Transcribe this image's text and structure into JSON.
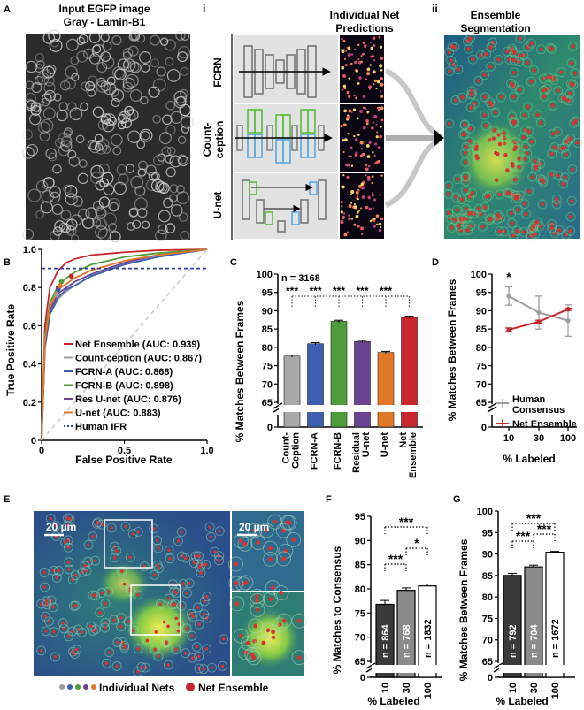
{
  "colors": {
    "net_ensemble": "#c7262d",
    "count_ception": "#9d9d9d",
    "fcrn_a": "#3d5fad",
    "fcrn_b": "#4e9d3a",
    "res_unet": "#6b4291",
    "unet": "#e27826",
    "human": "#2e3f9c",
    "human_consensus": "#9d9d9d",
    "bar_dark": "#3a3a3a",
    "bar_mid": "#8a8a8a"
  },
  "panel_a": {
    "letter": "A",
    "title_line1": "Input EGFP image",
    "title_line2": "Gray - Lamin-B1"
  },
  "panel_i": {
    "numeral": "i",
    "title_line1": "Individual Net",
    "title_line2": "Predictions",
    "rows": [
      "FCRN",
      "Count-",
      "ception",
      "U-net"
    ]
  },
  "panel_ii": {
    "numeral": "ii",
    "title_line1": "Ensemble",
    "title_line2": "Segmentation"
  },
  "panel_b": {
    "letter": "B",
    "ylabel": "True Positive Rate",
    "xlabel": "False Positive Rate",
    "xticks": [
      "0",
      "0.5",
      "1.0"
    ],
    "yticks": [
      "0",
      "0.2",
      "0.4",
      "0.6",
      "0.8",
      "1.0"
    ],
    "legend": [
      "Net Ensemble (AUC: 0.939)",
      "Count-ception (AUC: 0.867)",
      "FCRN-A (AUC: 0.868)",
      "FCRN-B (AUC: 0.898)",
      "Res U-net (AUC: 0.876)",
      "U-net (AUC: 0.883)",
      "Human IFR"
    ]
  },
  "panel_c": {
    "letter": "C",
    "note": "n = 3168",
    "ylabel": "% Matches Between Frames",
    "yticks": [
      "65",
      "70",
      "75",
      "80",
      "85",
      "90",
      "95",
      "100"
    ],
    "ytick_zero": "0",
    "sig": [
      "***",
      "***",
      "***",
      "***",
      "***"
    ],
    "cat_lines": [
      [
        "Count-",
        "Ception"
      ],
      [
        "FCRN-A"
      ],
      [
        "FCRN-B"
      ],
      [
        "Residual",
        "U-net"
      ],
      [
        "U-net"
      ],
      [
        "Net",
        "Ensemble"
      ]
    ]
  },
  "panel_d": {
    "letter": "D",
    "star": "*",
    "ylabel": "% Matches Between Frames",
    "xlabel": "% Labeled",
    "xticks": [
      "10",
      "30",
      "100"
    ],
    "yticks": [
      "65",
      "70",
      "75",
      "80",
      "85",
      "90",
      "95",
      "100"
    ],
    "ytick_zero": "0",
    "legend_human_line1": "Human",
    "legend_human_line2": "Consensus",
    "legend_ensemble": "Net Ensemble"
  },
  "panel_e": {
    "letter": "E",
    "scale_main": "20 µm",
    "scale_inset": "20 µm",
    "legend_individual": "Individual Nets",
    "legend_ensemble": "Net Ensemble"
  },
  "panel_f": {
    "letter": "F",
    "ylabel": "% Matches to Consensus",
    "xlabel": "% Labeled",
    "xticks": [
      "10",
      "30",
      "100"
    ],
    "yticks": [
      "65",
      "70",
      "75",
      "80",
      "85",
      "90",
      "95"
    ],
    "ytick_zero": "0",
    "n_labels": [
      "n = 864",
      "n = 768",
      "n = 1832"
    ],
    "sig": [
      "***",
      "***",
      "*"
    ]
  },
  "panel_g": {
    "letter": "G",
    "ylabel": "% Matches Between Frames",
    "xlabel": "% Labeled",
    "xticks": [
      "10",
      "30",
      "100"
    ],
    "yticks": [
      "65",
      "70",
      "75",
      "80",
      "85",
      "90",
      "95",
      "100"
    ],
    "ytick_zero": "0",
    "n_labels": [
      "n = 792",
      "n = 704",
      "n = 1672"
    ],
    "sig": [
      "***",
      "***",
      "***"
    ]
  },
  "chart_data": [
    {
      "panel": "B",
      "type": "line",
      "title": "",
      "xlabel": "False Positive Rate",
      "ylabel": "True Positive Rate",
      "xlim": [
        0,
        1
      ],
      "ylim": [
        0,
        1
      ],
      "series": [
        {
          "name": "Net Ensemble (AUC: 0.939)",
          "color": "#c7262d",
          "x": [
            0,
            0.02,
            0.05,
            0.1,
            0.15,
            0.2,
            0.3,
            0.5,
            0.7,
            1.0
          ],
          "y": [
            0,
            0.6,
            0.8,
            0.89,
            0.93,
            0.95,
            0.97,
            0.985,
            0.995,
            1.0
          ]
        },
        {
          "name": "Count-ception (AUC: 0.867)",
          "color": "#9d9d9d",
          "x": [
            0,
            0.02,
            0.05,
            0.1,
            0.15,
            0.2,
            0.3,
            0.5,
            0.7,
            1.0
          ],
          "y": [
            0,
            0.5,
            0.66,
            0.74,
            0.78,
            0.81,
            0.86,
            0.92,
            0.96,
            1.0
          ]
        },
        {
          "name": "FCRN-A (AUC: 0.868)",
          "color": "#3d5fad",
          "x": [
            0,
            0.02,
            0.05,
            0.1,
            0.15,
            0.2,
            0.3,
            0.5,
            0.7,
            1.0
          ],
          "y": [
            0,
            0.48,
            0.66,
            0.75,
            0.79,
            0.81,
            0.86,
            0.92,
            0.96,
            1.0
          ]
        },
        {
          "name": "FCRN-B (AUC: 0.898)",
          "color": "#4e9d3a",
          "x": [
            0,
            0.02,
            0.05,
            0.1,
            0.15,
            0.2,
            0.3,
            0.5,
            0.7,
            1.0
          ],
          "y": [
            0,
            0.55,
            0.72,
            0.81,
            0.85,
            0.88,
            0.92,
            0.96,
            0.98,
            1.0
          ]
        },
        {
          "name": "Res U-net (AUC: 0.876)",
          "color": "#6b4291",
          "x": [
            0,
            0.02,
            0.05,
            0.1,
            0.15,
            0.2,
            0.3,
            0.5,
            0.7,
            1.0
          ],
          "y": [
            0,
            0.5,
            0.68,
            0.77,
            0.8,
            0.83,
            0.87,
            0.93,
            0.97,
            1.0
          ]
        },
        {
          "name": "U-net (AUC: 0.883)",
          "color": "#e27826",
          "x": [
            0,
            0.02,
            0.05,
            0.1,
            0.15,
            0.2,
            0.3,
            0.5,
            0.7,
            1.0
          ],
          "y": [
            0,
            0.52,
            0.7,
            0.79,
            0.82,
            0.85,
            0.89,
            0.94,
            0.97,
            1.0
          ]
        },
        {
          "name": "Human IFR",
          "color": "#2e3f9c",
          "dashed": true,
          "x": [
            0,
            1
          ],
          "y": [
            0.9,
            0.9
          ]
        },
        {
          "name": "chance",
          "color": "#cccccc",
          "dashed": true,
          "x": [
            0,
            1
          ],
          "y": [
            0,
            1
          ]
        }
      ],
      "points": [
        {
          "series": "Net Ensemble",
          "x": 0.18,
          "y": 0.86
        },
        {
          "series": "Count-ception",
          "x": 0.09,
          "y": 0.76
        },
        {
          "series": "FCRN-A",
          "x": 0.1,
          "y": 0.79
        },
        {
          "series": "FCRN-B",
          "x": 0.12,
          "y": 0.83
        },
        {
          "series": "Res U-net",
          "x": 0.1,
          "y": 0.8
        },
        {
          "series": "U-net",
          "x": 0.11,
          "y": 0.81
        }
      ]
    },
    {
      "panel": "C",
      "type": "bar",
      "title": "",
      "xlabel": "",
      "ylabel": "% Matches Between Frames",
      "ylim": [
        65,
        100
      ],
      "axis_break": true,
      "categories": [
        "Count-Ception",
        "FCRN-A",
        "FCRN-B",
        "Residual U-net",
        "U-net",
        "Net Ensemble"
      ],
      "values": [
        77.6,
        81.0,
        87.1,
        81.6,
        78.6,
        88.2
      ],
      "errors": [
        0.3,
        0.3,
        0.3,
        0.3,
        0.3,
        0.3
      ],
      "colors": [
        "#a8a8a8",
        "#3d5fad",
        "#4e9d3a",
        "#6b4291",
        "#e27826",
        "#c7262d"
      ],
      "annotation": "n = 3168"
    },
    {
      "panel": "D",
      "type": "line",
      "title": "",
      "xlabel": "% Labeled",
      "ylabel": "% Matches Between Frames",
      "ylim": [
        65,
        100
      ],
      "axis_break": true,
      "categories": [
        "10",
        "30",
        "100"
      ],
      "series": [
        {
          "name": "Human Consensus",
          "color": "#9d9d9d",
          "values": [
            94.0,
            89.5,
            87.3
          ],
          "errors": [
            2.5,
            4.5,
            4.3
          ]
        },
        {
          "name": "Net Ensemble",
          "color": "#c7262d",
          "values": [
            84.8,
            87.0,
            90.4
          ],
          "errors": [
            0.5,
            0.4,
            0.3
          ]
        }
      ]
    },
    {
      "panel": "F",
      "type": "bar",
      "title": "",
      "xlabel": "% Labeled",
      "ylabel": "% Matches to Consensus",
      "ylim": [
        65,
        95
      ],
      "axis_break": true,
      "categories": [
        "10",
        "30",
        "100"
      ],
      "values": [
        76.8,
        79.7,
        80.6
      ],
      "errors": [
        0.8,
        0.5,
        0.4
      ],
      "n": [
        "n = 864",
        "n = 768",
        "n = 1832"
      ]
    },
    {
      "panel": "G",
      "type": "bar",
      "title": "",
      "xlabel": "% Labeled",
      "ylabel": "% Matches Between Frames",
      "ylim": [
        65,
        100
      ],
      "axis_break": true,
      "categories": [
        "10",
        "30",
        "100"
      ],
      "values": [
        85.0,
        87.0,
        90.4
      ],
      "errors": [
        0.5,
        0.4,
        0.2
      ],
      "n": [
        "n = 792",
        "n = 704",
        "n = 1672"
      ]
    }
  ]
}
